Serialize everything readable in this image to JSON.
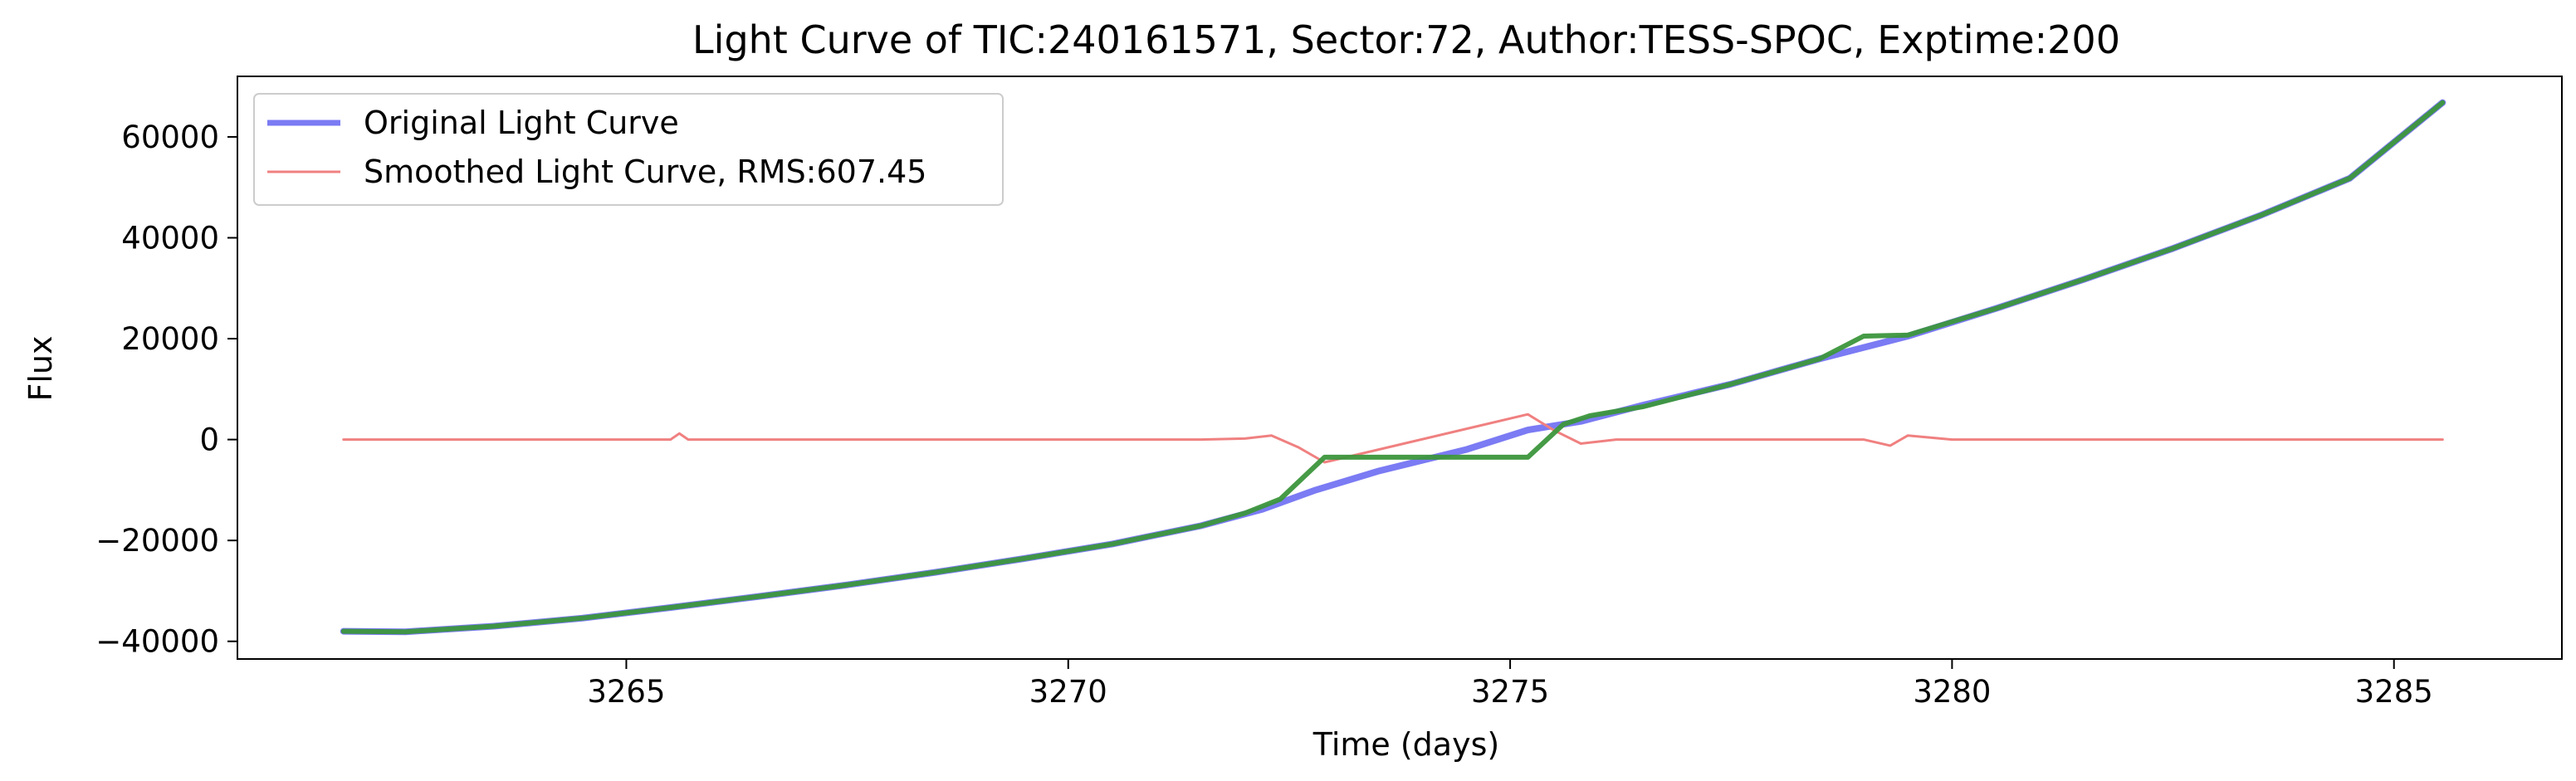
{
  "chart_data": {
    "type": "line",
    "title": "Light Curve of TIC:240161571, Sector:72, Author:TESS-SPOC, Exptime:200",
    "xlabel": "Time (days)",
    "ylabel": "Flux",
    "xlim": [
      3260.6,
      3286.9
    ],
    "ylim": [
      -43500,
      72000
    ],
    "xticks": [
      3265,
      3270,
      3275,
      3280,
      3285
    ],
    "xtick_labels": [
      "3265",
      "3270",
      "3275",
      "3280",
      "3285"
    ],
    "yticks": [
      -40000,
      -20000,
      0,
      20000,
      40000,
      60000
    ],
    "ytick_labels": [
      "−40000",
      "−20000",
      "0",
      "20000",
      "40000",
      "60000"
    ],
    "grid": false,
    "legend_position": "top-left",
    "series": [
      {
        "name": "Original Light Curve",
        "color": "#7b7bf4",
        "x": [
          3261.8,
          3262.5,
          3263.5,
          3264.5,
          3265.5,
          3266.5,
          3267.5,
          3268.5,
          3269.5,
          3270.5,
          3271.5,
          3272.2,
          3272.8,
          3273.5,
          3274.5,
          3275.2,
          3275.8,
          3276.5,
          3277.5,
          3278.5,
          3279.5,
          3280.5,
          3281.5,
          3282.5,
          3283.5,
          3284.5,
          3285.55
        ],
        "y": [
          -38000,
          -38100,
          -37000,
          -35400,
          -33300,
          -31100,
          -28800,
          -26300,
          -23600,
          -20700,
          -17100,
          -13800,
          -10000,
          -6300,
          -2000,
          1900,
          3600,
          6800,
          11000,
          16000,
          20500,
          26000,
          31800,
          37900,
          44500,
          51800,
          66800
        ]
      },
      {
        "name": "Smoothed Light Curve, RMS:607.45",
        "color": "#f08080",
        "x": [
          3261.8,
          3263.0,
          3264.5,
          3265.5,
          3265.6,
          3265.7,
          3266.5,
          3268.0,
          3270.0,
          3271.5,
          3272.0,
          3272.3,
          3272.6,
          3272.9,
          3275.2,
          3275.5,
          3275.8,
          3276.2,
          3277.0,
          3278.5,
          3279.0,
          3279.3,
          3279.5,
          3280.0,
          3282.0,
          3284.0,
          3285.55
        ],
        "y": [
          0,
          0,
          0,
          0,
          1200,
          0,
          0,
          0,
          0,
          0,
          200,
          800,
          -1500,
          -4500,
          5000,
          1800,
          -800,
          0,
          0,
          0,
          0,
          -1200,
          800,
          0,
          0,
          0,
          0
        ]
      },
      {
        "color": "#3c963c",
        "x": [
          3261.8,
          3262.5,
          3263.5,
          3264.5,
          3265.5,
          3266.5,
          3267.5,
          3268.5,
          3269.5,
          3270.5,
          3271.5,
          3272.0,
          3272.4,
          3272.9,
          3275.2,
          3275.6,
          3275.9,
          3276.5,
          3277.5,
          3278.5,
          3279.0,
          3279.5,
          3280.5,
          3281.5,
          3282.5,
          3283.5,
          3284.5,
          3285.55
        ],
        "y": [
          -38000,
          -38100,
          -37000,
          -35400,
          -33300,
          -31100,
          -28800,
          -26300,
          -23600,
          -20700,
          -17100,
          -14600,
          -11800,
          -3500,
          -3500,
          3000,
          4700,
          6500,
          11000,
          16000,
          20500,
          20700,
          26000,
          31800,
          37900,
          44500,
          51800,
          66800
        ]
      }
    ]
  }
}
